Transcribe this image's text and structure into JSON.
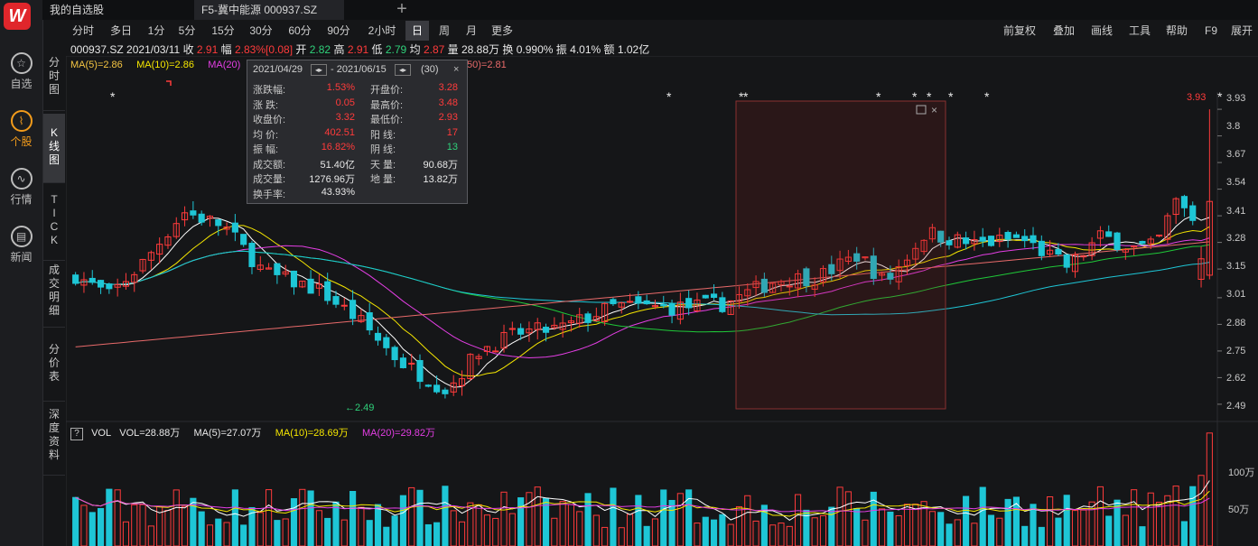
{
  "tabs": [
    {
      "label": "我的自选股"
    },
    {
      "label": "F5-冀中能源 000937.SZ"
    }
  ],
  "sidebar": [
    {
      "label": "自选",
      "icon": "star-icon"
    },
    {
      "label": "个股",
      "icon": "stock-chart-icon"
    },
    {
      "label": "行情",
      "icon": "market-line-icon"
    },
    {
      "label": "新闻",
      "icon": "newspaper-icon"
    }
  ],
  "toolbar": {
    "periods": [
      "分时",
      "多日",
      "1分",
      "5分",
      "15分",
      "30分",
      "60分",
      "90分",
      "2小时",
      "日",
      "周",
      "月",
      "更多"
    ],
    "active_period": "日",
    "right": [
      "前复权",
      "叠加",
      "画线",
      "工具",
      "帮助",
      "F9",
      "展开"
    ]
  },
  "side_tabs": [
    "分\n时\n图",
    "K\n线\n图",
    "T\nI\nC\nK",
    "成\n交\n明\n细",
    "分\n价\n表",
    "深\n度\n资\n料"
  ],
  "info": {
    "code_date": "000937.SZ 2021/03/11",
    "close_label": "收",
    "close": "2.91",
    "amp_label": "幅",
    "amp": "2.83%[0.08]",
    "open_label": "开",
    "open": "2.82",
    "high_label": "高",
    "high": "2.91",
    "low_label": "低",
    "low": "2.79",
    "avg_label": "均",
    "avg": "2.87",
    "vol_label": "量",
    "vol": "28.88万",
    "turn_label": "换",
    "turn": "0.990%",
    "swing_label": "振",
    "swing": "4.01%",
    "amount_label": "额",
    "amount": "1.02亿"
  },
  "ma": {
    "ma5": "MA(5)=2.86",
    "ma10": "MA(10)=2.86",
    "ma20": "MA(20)",
    "ma250": "50)=2.81"
  },
  "popup": {
    "date_from": "2021/04/29",
    "date_to": "- 2021/06/15",
    "count": "(30)",
    "rows": [
      {
        "l1": "涨跌幅:",
        "v1": "1.53%",
        "c1": "r",
        "l2": "开盘价:",
        "v2": "3.28",
        "c2": "r"
      },
      {
        "l1": "涨    跌:",
        "v1": "0.05",
        "c1": "r",
        "l2": "最高价:",
        "v2": "3.48",
        "c2": "r"
      },
      {
        "l1": "收盘价:",
        "v1": "3.32",
        "c1": "r",
        "l2": "最低价:",
        "v2": "2.93",
        "c2": "r"
      },
      {
        "l1": "均    价:",
        "v1": "402.51",
        "c1": "r",
        "l2": "阳    线:",
        "v2": "17",
        "c2": "r"
      },
      {
        "l1": "振    幅:",
        "v1": "16.82%",
        "c1": "r",
        "l2": "阴    线:",
        "v2": "13",
        "c2": "g"
      },
      {
        "l1": "成交额:",
        "v1": "51.40亿",
        "c1": "w",
        "l2": "天    量:",
        "v2": "90.68万",
        "c2": "w"
      },
      {
        "l1": "成交量:",
        "v1": "1276.96万",
        "c1": "w",
        "l2": "地    量:",
        "v2": "13.82万",
        "c2": "w"
      },
      {
        "l1": "换手率:",
        "v1": "43.93%",
        "c1": "w",
        "l2": "",
        "v2": "",
        "c2": "w"
      }
    ]
  },
  "vol": {
    "label": "VOL",
    "vol": "VOL=28.88万",
    "ma5": "MA(5)=27.07万",
    "ma10": "MA(10)=28.69万",
    "ma20": "MA(20)=29.82万"
  },
  "annotations": {
    "low": "←2.49",
    "high": "3.93"
  },
  "chart_data": {
    "type": "candlestick",
    "price_axis_ticks": [
      "3.93",
      "3.8",
      "3.67",
      "3.54",
      "3.41",
      "3.28",
      "3.15",
      "3.01",
      "2.88",
      "2.75",
      "2.62",
      "2.49"
    ],
    "volume_axis_ticks": [
      "100万",
      "50万"
    ],
    "ylim": [
      2.45,
      3.97
    ],
    "high_marker": 3.93,
    "low_marker": 2.49,
    "colors": {
      "up": "#ff3b3b",
      "down": "#1ec6d6",
      "ma5": "#ffffff",
      "ma10": "#f5e600",
      "ma20": "#e43ee4",
      "ma60": "#1fc838",
      "ma120": "#1ec6d6",
      "ma250": "#e86a6a"
    }
  }
}
